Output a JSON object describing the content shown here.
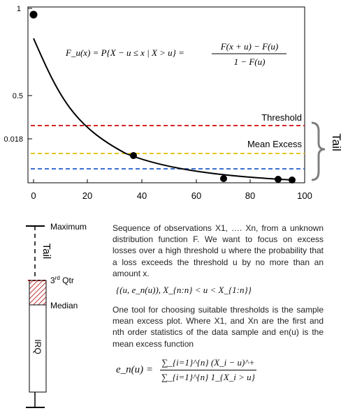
{
  "plot": {
    "y_ticks": [
      "1",
      "0.5",
      "0.018"
    ],
    "x_ticks": [
      "0",
      "20",
      "40",
      "60",
      "80",
      "100"
    ],
    "threshold_label": "Threshold",
    "mean_excess_label": "Mean Excess",
    "tail_label": "Tail",
    "colors": {
      "threshold": "#d62424",
      "mean_excess": "#e6c619",
      "lower": "#3c6fd1",
      "curve": "#000000",
      "brace": "#808080"
    },
    "formula": {
      "lhs": "F_u(x) = P{X − u ≤ x | X > u} =",
      "numerator": "F(x + u) − F(u)",
      "denominator": "1 − F(u)"
    }
  },
  "chart_data": {
    "type": "scatter",
    "xlim": [
      0,
      100
    ],
    "points": [
      {
        "x": 0,
        "y": 1.0
      },
      {
        "x": 37,
        "y": 0.017
      },
      {
        "x": 70,
        "y": 0.003
      },
      {
        "x": 90,
        "y": 0.002
      },
      {
        "x": 95,
        "y": 0.001
      }
    ],
    "curve": "decreasing exponential",
    "hlines": [
      {
        "label": "Threshold",
        "color": "#d62424"
      },
      {
        "label": "Mean Excess",
        "color": "#e6c619"
      },
      {
        "label": "",
        "color": "#3c6fd1"
      }
    ]
  },
  "boxplot": {
    "maximum_label": "Maximum",
    "tail_label": "Tail",
    "q3_label": "3rd Qtr",
    "median_label": "Median",
    "iqr_label": "IRQ"
  },
  "text": {
    "para1": "Sequence of observations X1, …. Xn, from a unknown distribution function F. We want to focus on excess losses over a high threshold u where the probability that a loss exceeds the threshold u by no more than an amount x.",
    "inequality": "{(u, e_n(u)), X_{n:n} < u < X_{1:n}}",
    "para2": "One tool for choosing suitable thresholds is the sample mean excess plot. Where X1, and Xn are the first and nth order statistics of the data sample and en(u) is the mean excess function",
    "mef_lhs": "e_n(u) =",
    "mef_num": "∑_{i=1}^{n} (X_i − u)^+",
    "mef_den": "∑_{i=1}^{n} 1_{X_i > u}"
  }
}
